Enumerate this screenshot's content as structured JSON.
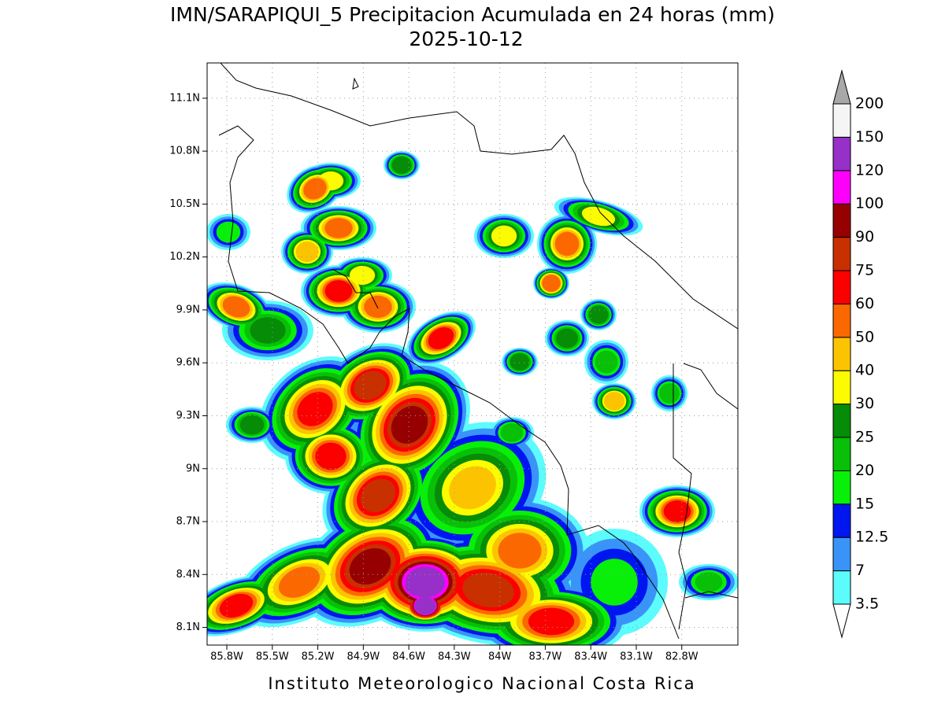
{
  "header": {
    "title": "IMN/SARAPIQUI_5 Precipitacion Acumulada en 24 horas (mm)",
    "subtitle": "2025-10-12"
  },
  "footer": "Instituto Meteorologico Nacional Costa Rica",
  "map": {
    "xlim": [
      -85.93,
      -82.43
    ],
    "ylim": [
      8.0,
      11.3
    ],
    "grid": true,
    "xticks": [
      {
        "value": -85.8,
        "label": "85.8W"
      },
      {
        "value": -85.5,
        "label": "85.5W"
      },
      {
        "value": -85.2,
        "label": "85.2W"
      },
      {
        "value": -84.9,
        "label": "84.9W"
      },
      {
        "value": -84.6,
        "label": "84.6W"
      },
      {
        "value": -84.3,
        "label": "84.3W"
      },
      {
        "value": -84,
        "label": "84W"
      },
      {
        "value": -83.7,
        "label": "83.7W"
      },
      {
        "value": -83.4,
        "label": "83.4W"
      },
      {
        "value": -83.1,
        "label": "83.1W"
      },
      {
        "value": -82.8,
        "label": "82.8W"
      }
    ],
    "yticks": [
      {
        "value": 8.1,
        "label": "8.1N"
      },
      {
        "value": 8.4,
        "label": "8.4N"
      },
      {
        "value": 8.7,
        "label": "8.7N"
      },
      {
        "value": 9,
        "label": "9N"
      },
      {
        "value": 9.3,
        "label": "9.3N"
      },
      {
        "value": 9.6,
        "label": "9.6N"
      },
      {
        "value": 9.9,
        "label": "9.9N"
      },
      {
        "value": 10.2,
        "label": "10.2N"
      },
      {
        "value": 10.5,
        "label": "10.5N"
      },
      {
        "value": 10.8,
        "label": "10.8N"
      },
      {
        "value": 11.1,
        "label": "11.1N"
      }
    ]
  },
  "colorbar": {
    "levels": [
      3.5,
      7,
      12.5,
      15,
      20,
      25,
      30,
      40,
      50,
      60,
      75,
      90,
      100,
      120,
      150,
      200
    ],
    "colors": [
      "#5cfcfc",
      "#3a94f8",
      "#0016f0",
      "#08f008",
      "#08c008",
      "#068c06",
      "#fcfc00",
      "#fcc400",
      "#fc6800",
      "#fc0000",
      "#c83000",
      "#960000",
      "#fc00fc",
      "#9630c8",
      "#f5f5f5"
    ],
    "under_color": "#ffffff",
    "over_color": "#a8a8a8"
  }
}
